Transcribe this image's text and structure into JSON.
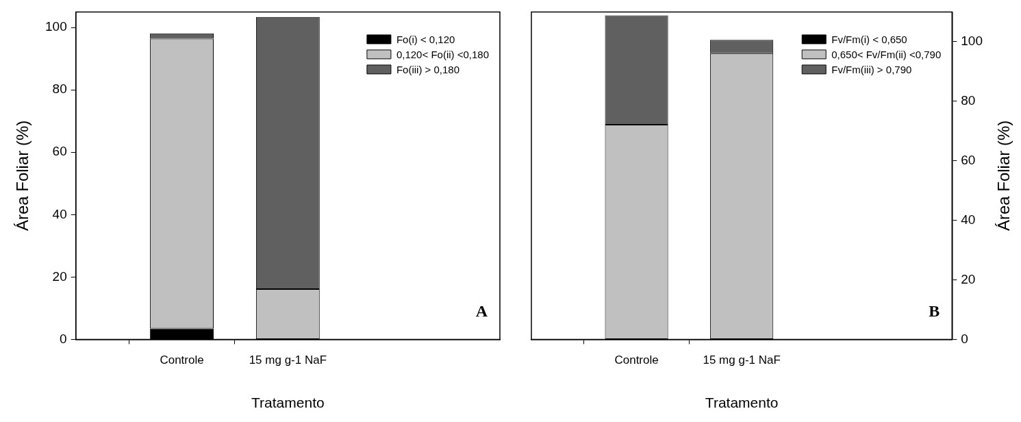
{
  "chart_data": [
    {
      "type": "bar",
      "stacked": true,
      "xlabel": "Tratamento",
      "ylabel": "Área Foliar (%)",
      "categories": [
        null,
        "Controle",
        "15 mg g-1 NaF",
        null,
        null
      ],
      "ylim": [
        0,
        105
      ],
      "yticks": [
        0,
        20,
        40,
        60,
        80,
        100
      ],
      "legend": "top right",
      "annotations": [
        "A"
      ],
      "series": [
        {
          "name": "Fo(i) < 0,120",
          "color": "#000000",
          "values": [
            null,
            3.5,
            0,
            null,
            null
          ]
        },
        {
          "name": "0,120< Fo(ii) <0,180",
          "color": "#c0c0c0",
          "values": [
            null,
            92.9,
            16.1,
            null,
            null
          ]
        },
        {
          "name": "Fo(iii) > 0,180",
          "color": "#606060",
          "values": [
            null,
            1.7,
            87.3,
            null,
            null
          ]
        }
      ]
    },
    {
      "type": "bar",
      "stacked": true,
      "xlabel": "Tratamento",
      "y2label": "Área Foliar (%)",
      "categories": [
        null,
        "Controle",
        "15 mg g-1 NaF",
        null,
        null
      ],
      "y2lim": [
        0,
        110
      ],
      "y2ticks": [
        0,
        20,
        40,
        60,
        80,
        100
      ],
      "legend": "top right",
      "annotations": [
        "B"
      ],
      "series": [
        {
          "name": "Fv/Fm(i) < 0,650",
          "color": "#000000",
          "axis": "y2",
          "values": [
            null,
            0,
            0,
            null,
            null
          ]
        },
        {
          "name": "0,650< Fv/Fm(ii) <0,790",
          "color": "#c0c0c0",
          "axis": "y2",
          "values": [
            null,
            72.1,
            96.1,
            null,
            null
          ]
        },
        {
          "name": "Fv/Fm(iii) > 0,790",
          "color": "#606060",
          "axis": "y2",
          "values": [
            null,
            36.7,
            4.5,
            null,
            null
          ]
        }
      ]
    }
  ]
}
